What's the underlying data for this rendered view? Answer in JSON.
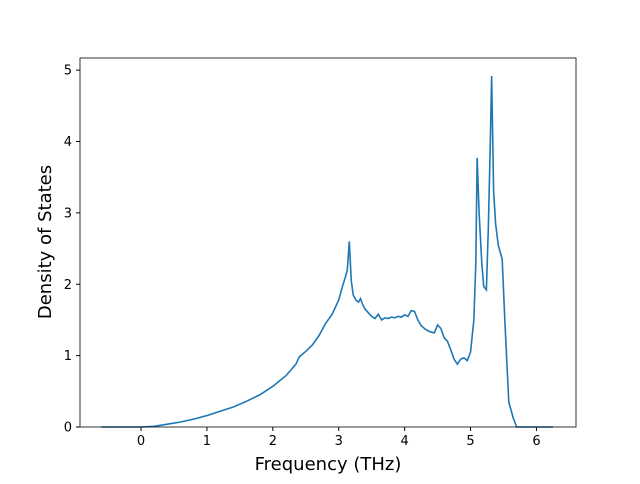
{
  "chart_data": {
    "type": "line",
    "x_label": "Frequency (THz)",
    "y_label": "Density of States",
    "xlim": [
      -0.926,
      6.6
    ],
    "ylim": [
      0,
      5.17
    ],
    "xticks": [
      0,
      1,
      2,
      3,
      4,
      5,
      6
    ],
    "yticks": [
      0,
      1,
      2,
      3,
      4,
      5
    ],
    "x": [
      -0.6,
      0.0,
      0.2,
      0.4,
      0.6,
      0.8,
      1.0,
      1.2,
      1.4,
      1.6,
      1.8,
      2.0,
      2.2,
      2.35,
      2.4,
      2.5,
      2.6,
      2.7,
      2.8,
      2.9,
      3.0,
      3.05,
      3.1,
      3.13,
      3.16,
      3.19,
      3.22,
      3.26,
      3.3,
      3.33,
      3.36,
      3.4,
      3.45,
      3.5,
      3.55,
      3.6,
      3.65,
      3.7,
      3.75,
      3.8,
      3.85,
      3.9,
      3.95,
      4.0,
      4.05,
      4.1,
      4.15,
      4.2,
      4.25,
      4.3,
      4.35,
      4.4,
      4.45,
      4.5,
      4.55,
      4.6,
      4.65,
      4.7,
      4.75,
      4.8,
      4.85,
      4.9,
      4.95,
      5.0,
      5.05,
      5.08,
      5.1,
      5.13,
      5.17,
      5.2,
      5.24,
      5.27,
      5.3,
      5.32,
      5.35,
      5.38,
      5.42,
      5.48,
      5.52,
      5.58,
      5.65,
      5.7,
      6.25
    ],
    "series": [
      {
        "name": "DOS",
        "color": "#1f77b4",
        "values": [
          0,
          0,
          0.01,
          0.04,
          0.07,
          0.11,
          0.16,
          0.22,
          0.28,
          0.36,
          0.45,
          0.57,
          0.72,
          0.88,
          0.98,
          1.06,
          1.15,
          1.28,
          1.45,
          1.58,
          1.78,
          1.95,
          2.1,
          2.2,
          2.6,
          2.05,
          1.85,
          1.78,
          1.75,
          1.8,
          1.72,
          1.65,
          1.6,
          1.55,
          1.52,
          1.58,
          1.5,
          1.53,
          1.52,
          1.54,
          1.53,
          1.55,
          1.54,
          1.57,
          1.55,
          1.63,
          1.62,
          1.5,
          1.42,
          1.38,
          1.35,
          1.33,
          1.32,
          1.43,
          1.38,
          1.25,
          1.2,
          1.08,
          0.95,
          0.88,
          0.95,
          0.97,
          0.93,
          1.05,
          1.5,
          2.3,
          3.77,
          3.0,
          2.3,
          1.97,
          1.92,
          2.8,
          4.0,
          4.92,
          3.3,
          2.85,
          2.55,
          2.35,
          1.5,
          0.35,
          0.12,
          0,
          0
        ]
      }
    ]
  }
}
